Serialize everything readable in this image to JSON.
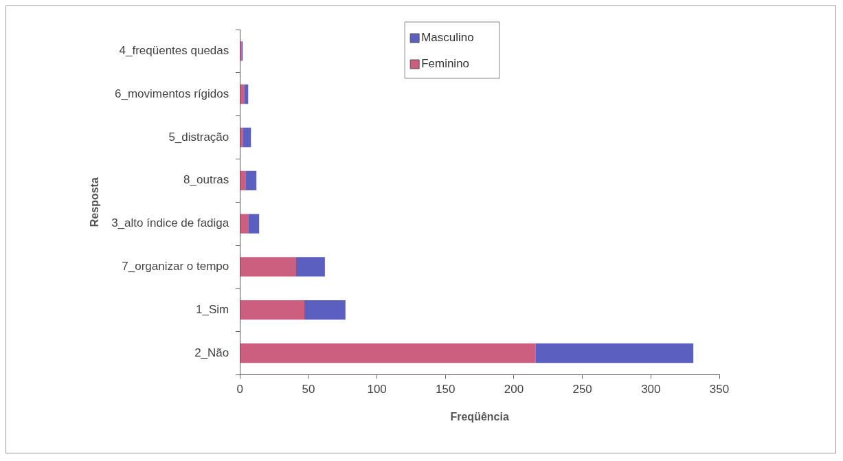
{
  "chart_data": {
    "type": "bar",
    "orientation": "horizontal",
    "stacked": true,
    "categories": [
      "4_freqüentes quedas",
      "6_movimentos rígidos",
      "5_distração",
      "8_outras",
      "3_alto índice de fadiga",
      "7_organizar o tempo",
      "1_Sim",
      "2_Não"
    ],
    "series": [
      {
        "name": "Feminino",
        "color": "#cc5f80",
        "values": [
          1,
          3,
          2,
          4,
          6,
          41,
          47,
          216
        ]
      },
      {
        "name": "Masculino",
        "color": "#5a5fc0",
        "values": [
          1,
          3,
          6,
          8,
          8,
          21,
          30,
          115
        ]
      }
    ],
    "xlim": [
      0,
      350
    ],
    "xticks": [
      0,
      50,
      100,
      150,
      200,
      250,
      300,
      350
    ],
    "xlabel": "Freqüência",
    "ylabel": "Resposta",
    "legend": "top",
    "grid": false
  }
}
